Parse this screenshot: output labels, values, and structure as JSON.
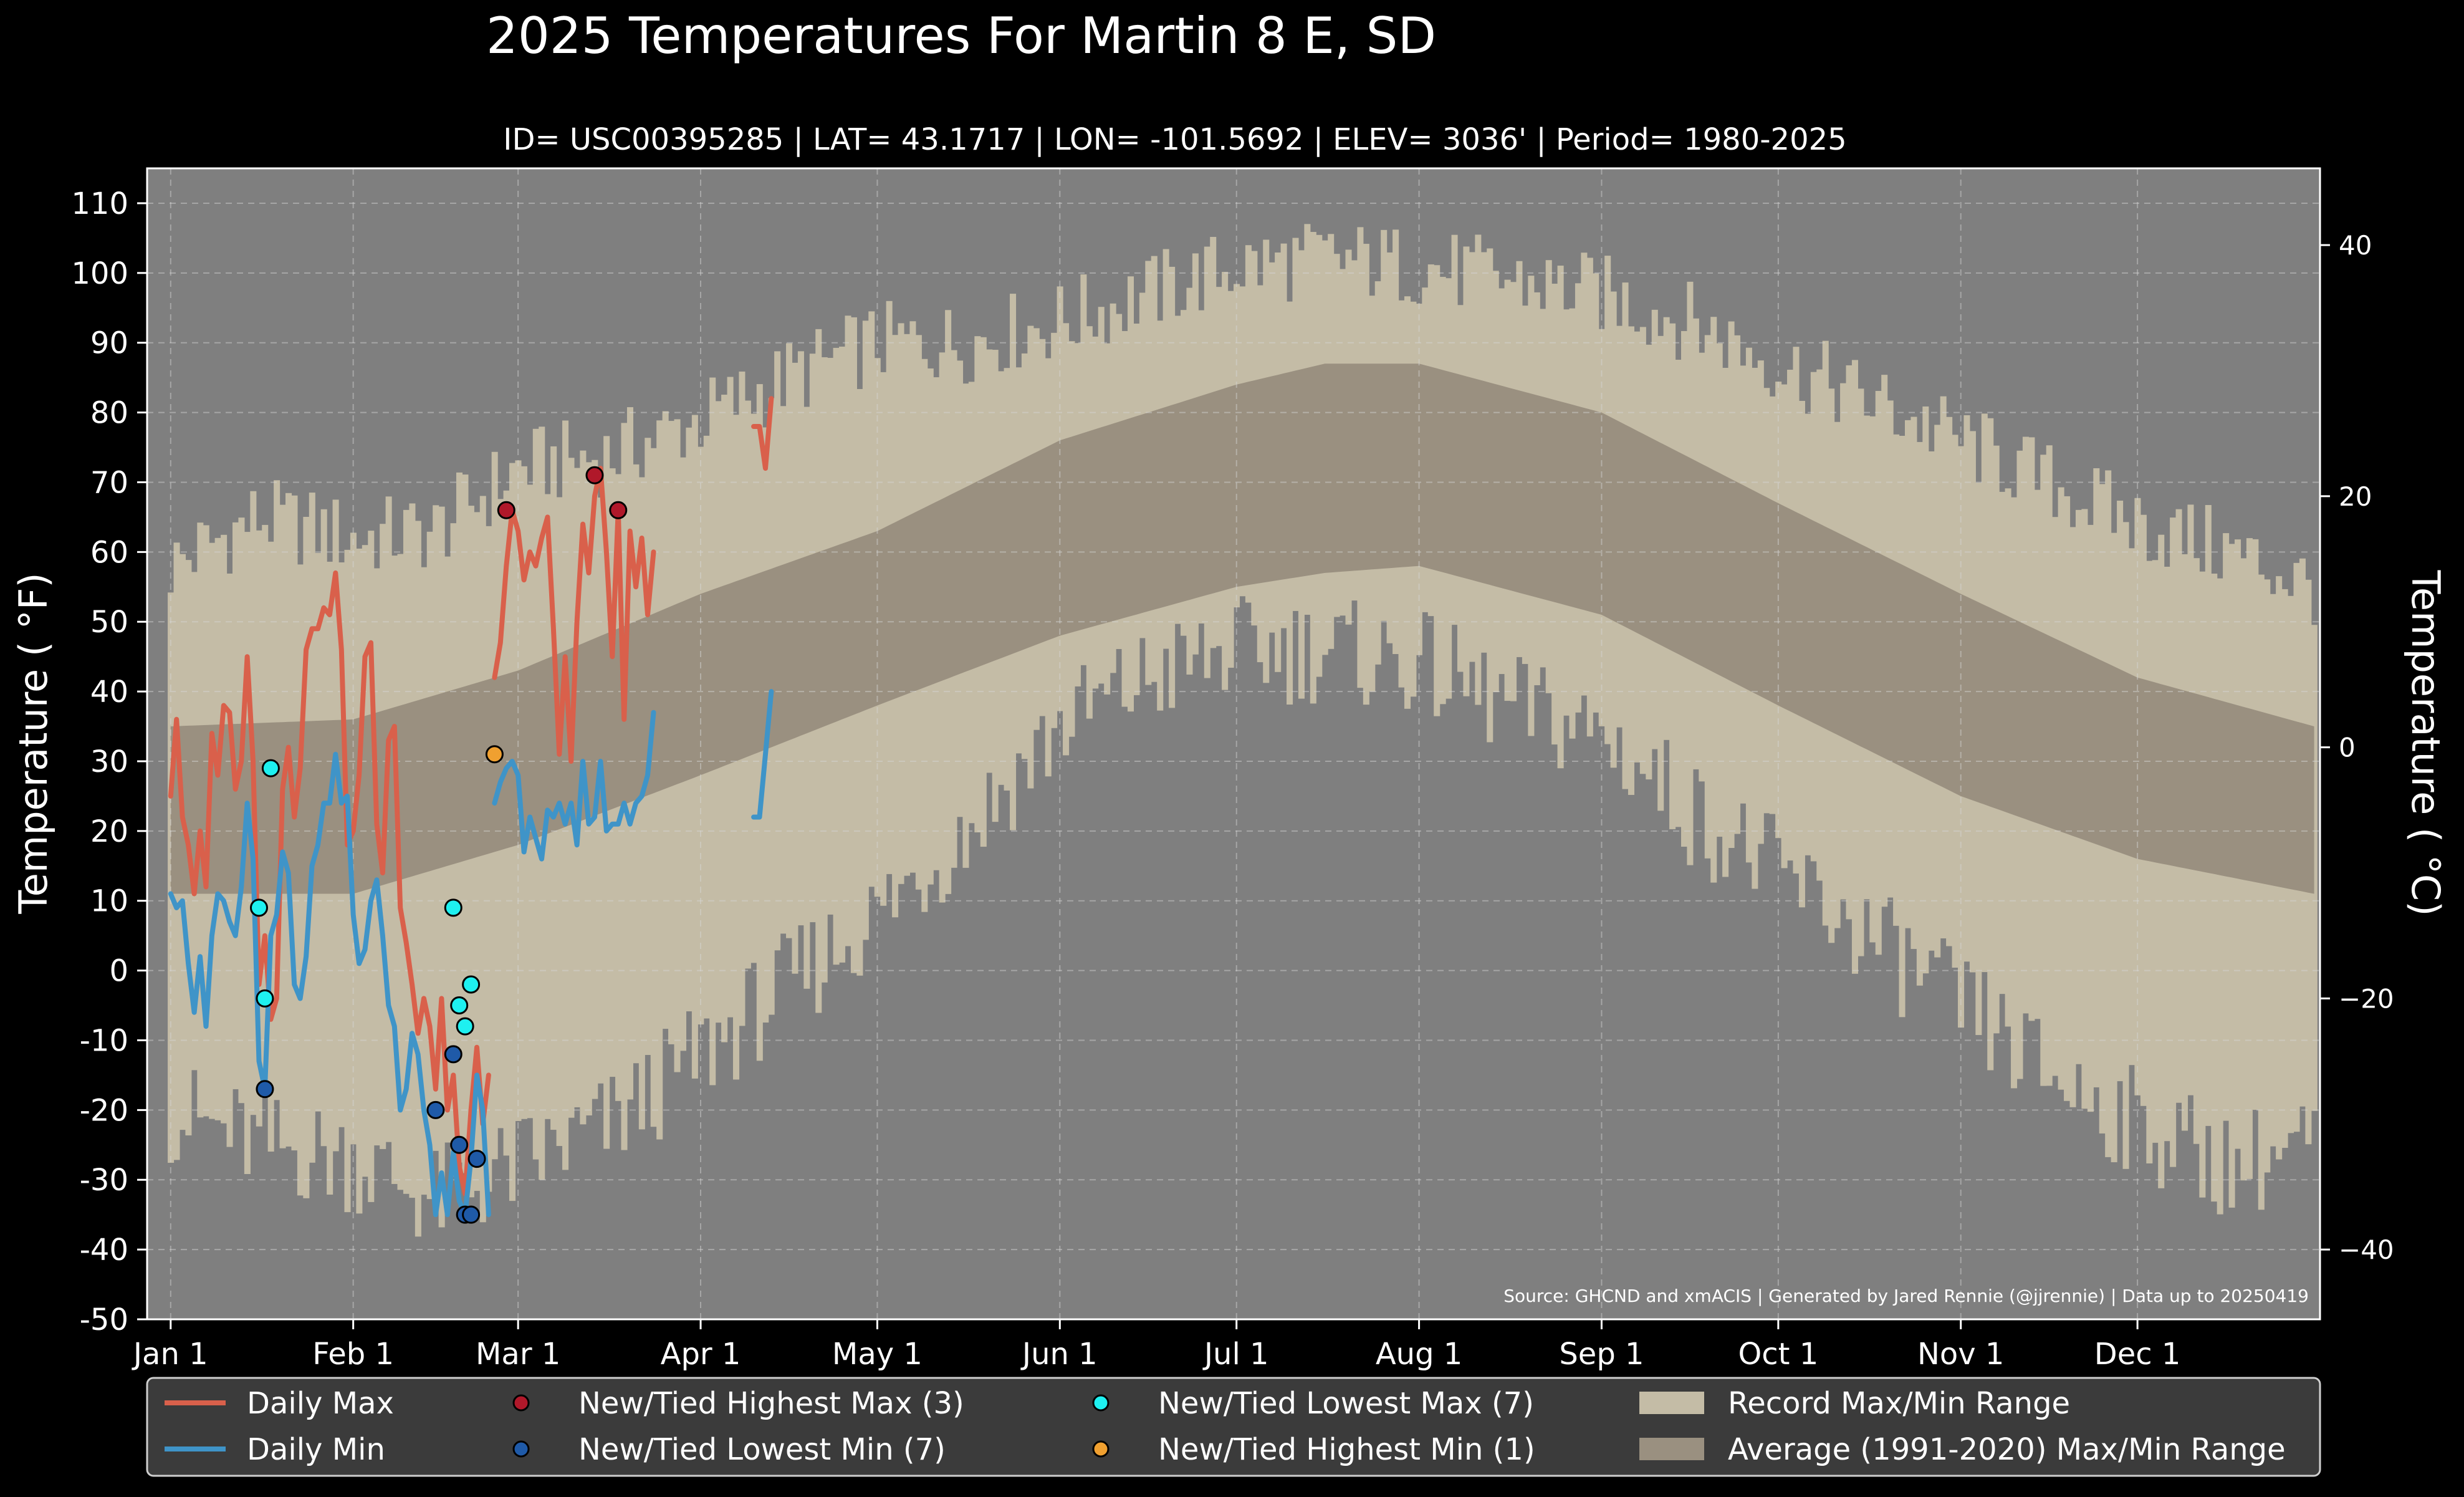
{
  "chart_data": {
    "type": "line",
    "title": "2025 Temperatures For Martin 8 E, SD",
    "subtitle": "ID= USC00395285 | LAT= 43.1717 | LON= -101.5692 | ELEV= 3036' | Period= 1980-2025",
    "ylabel": "Temperature ( °F)",
    "ylabel_right": "Temperature ( °C)",
    "source": "Source: GHCND and xmACIS | Generated by Jared Rennie (@jjrennie) | Data up to 20250419",
    "ylim": [
      -50,
      115
    ],
    "yticks": [
      -50,
      -40,
      -30,
      -20,
      -10,
      0,
      10,
      20,
      30,
      40,
      50,
      60,
      70,
      80,
      90,
      100,
      110
    ],
    "yticks_right": [
      -40,
      -20,
      0,
      20,
      40
    ],
    "xlim": [
      -4,
      365
    ],
    "month_ticks": [
      {
        "label": "Jan 1",
        "day": 0
      },
      {
        "label": "Feb 1",
        "day": 31
      },
      {
        "label": "Mar 1",
        "day": 59
      },
      {
        "label": "Apr 1",
        "day": 90
      },
      {
        "label": "May 1",
        "day": 120
      },
      {
        "label": "Jun 1",
        "day": 151
      },
      {
        "label": "Jul 1",
        "day": 181
      },
      {
        "label": "Aug 1",
        "day": 212
      },
      {
        "label": "Sep 1",
        "day": 243
      },
      {
        "label": "Oct 1",
        "day": 273
      },
      {
        "label": "Nov 1",
        "day": 304
      },
      {
        "label": "Dec 1",
        "day": 334
      }
    ],
    "grid": true,
    "legend_position": "bottom",
    "colors": {
      "background": "#000000",
      "plot_bg": "#7f7f7f",
      "record_range": "#c4bca6",
      "normal_range": "#9a9080",
      "daily_max": "#d9604b",
      "daily_min": "#3f94c8",
      "highest_max": "#b0182a",
      "lowest_min": "#1f5aa8",
      "lowest_max": "#1ef0f0",
      "highest_min": "#f0a030"
    },
    "normals": {
      "days": [
        0,
        31,
        59,
        90,
        120,
        151,
        181,
        196,
        212,
        243,
        273,
        304,
        334,
        364
      ],
      "max": [
        35,
        36,
        43,
        54,
        63,
        76,
        84,
        87,
        87,
        80,
        67,
        54,
        42,
        35
      ],
      "min": [
        11,
        11,
        18,
        28,
        38,
        48,
        55,
        57,
        58,
        51,
        38,
        25,
        16,
        11
      ]
    },
    "record_envelope": {
      "days": [
        0,
        15,
        31,
        45,
        59,
        75,
        90,
        105,
        120,
        135,
        151,
        166,
        181,
        196,
        212,
        227,
        243,
        258,
        273,
        288,
        304,
        319,
        334,
        350,
        364
      ],
      "max": [
        58,
        65,
        62,
        63,
        72,
        74,
        79,
        85,
        90,
        90,
        93,
        97,
        101,
        102,
        101,
        99,
        97,
        93,
        87,
        82,
        76,
        70,
        64,
        60,
        55
      ],
      "min": [
        -20,
        -25,
        -27,
        -33,
        -28,
        -22,
        -12,
        -2,
        8,
        20,
        35,
        42,
        46,
        46,
        44,
        38,
        34,
        23,
        14,
        5,
        -5,
        -15,
        -22,
        -28,
        -25
      ]
    },
    "series": [
      {
        "name": "Daily Max",
        "color": "#d9604b",
        "x": [
          0,
          1,
          2,
          3,
          4,
          5,
          6,
          7,
          8,
          9,
          10,
          11,
          12,
          13,
          14,
          15,
          16,
          17,
          18,
          19,
          20,
          21,
          22,
          23,
          24,
          25,
          26,
          27,
          28,
          29,
          30,
          31,
          32,
          33,
          34,
          35,
          36,
          37,
          38,
          39,
          40,
          41,
          42,
          43,
          44,
          45,
          46,
          47,
          48,
          49,
          50,
          51,
          52,
          53,
          54,
          null,
          55,
          56,
          57,
          58,
          59,
          60,
          61,
          62,
          63,
          64,
          65,
          66,
          67,
          68,
          69,
          70,
          71,
          72,
          73,
          74,
          75,
          76,
          77,
          78,
          79,
          80,
          81,
          82,
          null,
          99,
          100,
          101,
          102
        ],
        "y": [
          25,
          36,
          22,
          18,
          11,
          20,
          12,
          34,
          28,
          38,
          37,
          26,
          30,
          45,
          30,
          -2,
          5,
          -7,
          -4,
          26,
          32,
          22,
          29,
          46,
          49,
          49,
          52,
          51,
          57,
          46,
          18,
          20,
          28,
          45,
          47,
          21,
          14,
          33,
          35,
          9,
          4,
          -2,
          -9,
          -4,
          -8,
          -17,
          -4,
          -20,
          -15,
          -28,
          -32,
          -20,
          -11,
          -22,
          -15,
          null,
          42,
          47,
          58,
          66,
          63,
          56,
          60,
          58,
          62,
          65,
          49,
          31,
          45,
          30,
          50,
          64,
          57,
          68,
          72,
          60,
          45,
          66,
          36,
          63,
          55,
          62,
          51,
          60,
          null,
          78,
          78,
          72,
          82
        ]
      },
      {
        "name": "Daily Min",
        "color": "#3f94c8",
        "x": [
          0,
          1,
          2,
          3,
          4,
          5,
          6,
          7,
          8,
          9,
          10,
          11,
          12,
          13,
          14,
          15,
          16,
          17,
          18,
          19,
          20,
          21,
          22,
          23,
          24,
          25,
          26,
          27,
          28,
          29,
          30,
          31,
          32,
          33,
          34,
          35,
          36,
          37,
          38,
          39,
          40,
          41,
          42,
          43,
          44,
          45,
          46,
          47,
          48,
          49,
          50,
          51,
          52,
          53,
          54,
          null,
          55,
          56,
          57,
          58,
          59,
          60,
          61,
          62,
          63,
          64,
          65,
          66,
          67,
          68,
          69,
          70,
          71,
          72,
          73,
          74,
          75,
          76,
          77,
          78,
          79,
          80,
          81,
          82,
          null,
          99,
          100,
          101,
          102
        ],
        "y": [
          11,
          9,
          10,
          1,
          -6,
          2,
          -8,
          5,
          11,
          10,
          7,
          5,
          12,
          24,
          16,
          -13,
          -17,
          5,
          8,
          17,
          14,
          -2,
          -4,
          2,
          15,
          18,
          24,
          24,
          31,
          24,
          25,
          8,
          1,
          3,
          10,
          13,
          5,
          -5,
          -8,
          -20,
          -17,
          -9,
          -12,
          -20,
          -25,
          -35,
          -29,
          -35,
          -26,
          -33,
          -35,
          -27,
          -15,
          -20,
          -35,
          null,
          24,
          27,
          29,
          30,
          28,
          17,
          22,
          19,
          16,
          23,
          22,
          24,
          21,
          24,
          18,
          30,
          21,
          22,
          30,
          20,
          21,
          21,
          24,
          21,
          24,
          25,
          28,
          37,
          null,
          22,
          22,
          31,
          40
        ]
      }
    ],
    "markers": [
      {
        "name": "New/Tied Highest Max (3)",
        "color": "#b0182a",
        "points": [
          [
            57,
            66
          ],
          [
            72,
            71
          ],
          [
            76,
            66
          ]
        ]
      },
      {
        "name": "New/Tied Lowest Min (7)",
        "color": "#1f5aa8",
        "points": [
          [
            16,
            -17
          ],
          [
            45,
            -20
          ],
          [
            48,
            -12
          ],
          [
            49,
            -25
          ],
          [
            50,
            -35
          ],
          [
            51,
            -35
          ],
          [
            52,
            -27
          ]
        ]
      },
      {
        "name": "New/Tied Lowest Max (7)",
        "color": "#1ef0f0",
        "points": [
          [
            17,
            29
          ],
          [
            15,
            9
          ],
          [
            16,
            -4
          ],
          [
            48,
            9
          ],
          [
            49,
            -5
          ],
          [
            50,
            -8
          ],
          [
            51,
            -2
          ]
        ]
      },
      {
        "name": "New/Tied Highest Min (1)",
        "color": "#f0a030",
        "points": [
          [
            55,
            31
          ]
        ]
      }
    ],
    "legend": [
      {
        "label": "Daily Max",
        "kind": "line",
        "color": "#d9604b"
      },
      {
        "label": "Daily Min",
        "kind": "line",
        "color": "#3f94c8"
      },
      {
        "label": "New/Tied Highest Max (3)",
        "kind": "dot",
        "color": "#b0182a"
      },
      {
        "label": "New/Tied Lowest Min (7)",
        "kind": "dot",
        "color": "#1f5aa8"
      },
      {
        "label": "New/Tied Lowest Max (7)",
        "kind": "dot",
        "color": "#1ef0f0"
      },
      {
        "label": "New/Tied Highest Min (1)",
        "kind": "dot",
        "color": "#f0a030"
      },
      {
        "label": "Record Max/Min Range",
        "kind": "patch",
        "color": "#c4bca6"
      },
      {
        "label": "Average (1991-2020) Max/Min Range",
        "kind": "patch",
        "color": "#9a9080"
      }
    ]
  }
}
